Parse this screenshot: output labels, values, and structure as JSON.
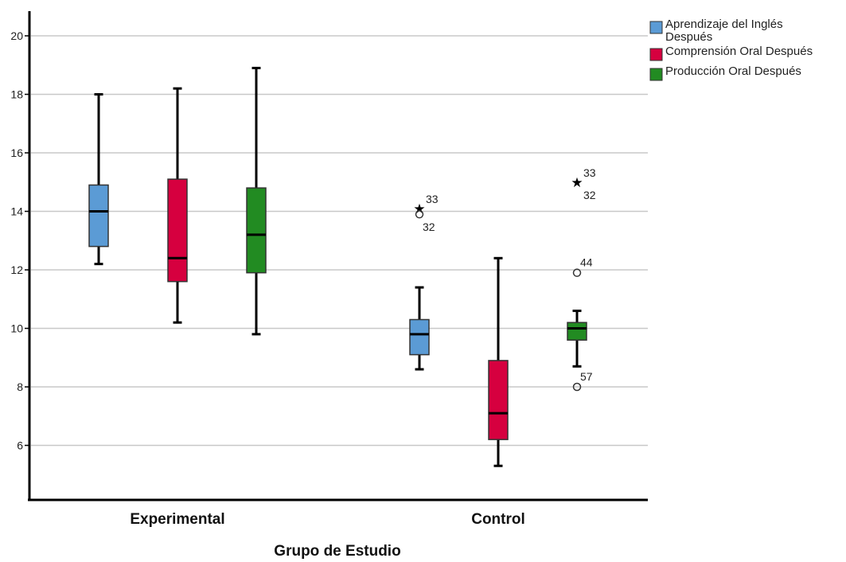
{
  "chart_data": {
    "type": "boxplot",
    "xlabel": "Grupo de Estudio",
    "ylabel": "",
    "ylim": [
      4.2,
      21
    ],
    "yticks": [
      6,
      8,
      10,
      12,
      14,
      16,
      18,
      20
    ],
    "grid": true,
    "legend_position": "top-right",
    "categories": [
      "Experimental",
      "Control"
    ],
    "series": [
      {
        "name": "Aprendizaje del Inglés Después",
        "legend_lines": [
          "Aprendizaje del Inglés",
          "Después"
        ],
        "color": "#5b9bd5",
        "boxes": [
          {
            "min": 12.2,
            "q1": 12.8,
            "median": 14.0,
            "q3": 14.9,
            "max": 18.0,
            "outliers": []
          },
          {
            "min": 8.6,
            "q1": 9.1,
            "median": 9.8,
            "q3": 10.3,
            "max": 11.4,
            "outliers": [
              {
                "value": 14.1,
                "kind": "extreme",
                "label": "33"
              },
              {
                "value": 13.9,
                "kind": "mild",
                "label": "32"
              }
            ]
          }
        ]
      },
      {
        "name": "Comprensión Oral Después",
        "legend_lines": [
          "Comprensión Oral Después"
        ],
        "color": "#d6003f",
        "boxes": [
          {
            "min": 10.2,
            "q1": 11.6,
            "median": 12.4,
            "q3": 15.1,
            "max": 18.2,
            "outliers": []
          },
          {
            "min": 5.3,
            "q1": 6.2,
            "median": 7.1,
            "q3": 8.9,
            "max": 12.4,
            "outliers": []
          }
        ]
      },
      {
        "name": "Producción Oral Después",
        "legend_lines": [
          "Producción Oral Después"
        ],
        "color": "#228b22",
        "boxes": [
          {
            "min": 9.8,
            "q1": 11.9,
            "median": 13.2,
            "q3": 14.8,
            "max": 18.9,
            "outliers": []
          },
          {
            "min": 8.7,
            "q1": 9.6,
            "median": 10.0,
            "q3": 10.2,
            "max": 10.6,
            "outliers": [
              {
                "value": 15.0,
                "kind": "extreme",
                "label": "33"
              },
              {
                "value": 15.0,
                "kind": "extreme",
                "label": "32"
              },
              {
                "value": 11.9,
                "kind": "mild",
                "label": "44"
              },
              {
                "value": 8.0,
                "kind": "mild",
                "label": "57"
              }
            ]
          }
        ]
      }
    ]
  }
}
